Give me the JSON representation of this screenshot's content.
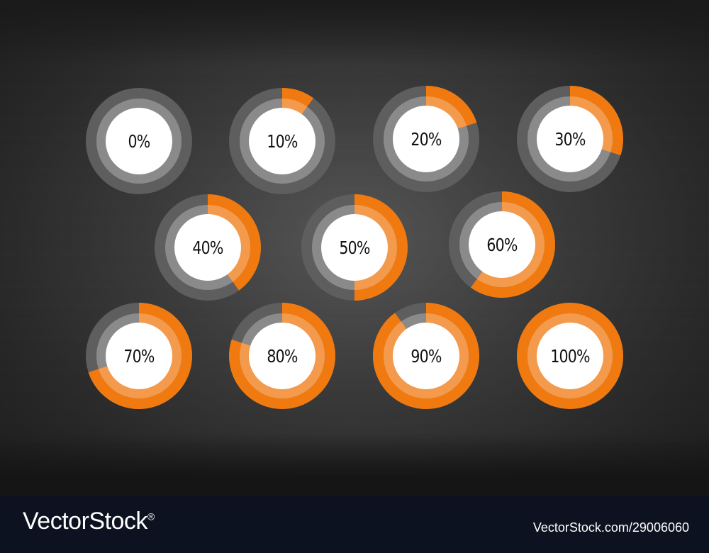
{
  "accent_color": "#f07a10",
  "accent_light_color": "#f49a4c",
  "track_outer_color": "#5e5e5e",
  "track_inner_color": "#8a8a8a",
  "center_color": "#ffffff",
  "gauges": [
    {
      "label": "0%",
      "value": 0
    },
    {
      "label": "10%",
      "value": 10
    },
    {
      "label": "20%",
      "value": 20
    },
    {
      "label": "30%",
      "value": 30
    },
    {
      "label": "40%",
      "value": 40
    },
    {
      "label": "50%",
      "value": 50
    },
    {
      "label": "60%",
      "value": 60
    },
    {
      "label": "70%",
      "value": 70
    },
    {
      "label": "80%",
      "value": 80
    },
    {
      "label": "90%",
      "value": 90
    },
    {
      "label": "100%",
      "value": 100
    }
  ],
  "footer": {
    "brand": "VectorStock",
    "registered_mark": "®",
    "image_id": "VectorStock.com/29006060"
  }
}
